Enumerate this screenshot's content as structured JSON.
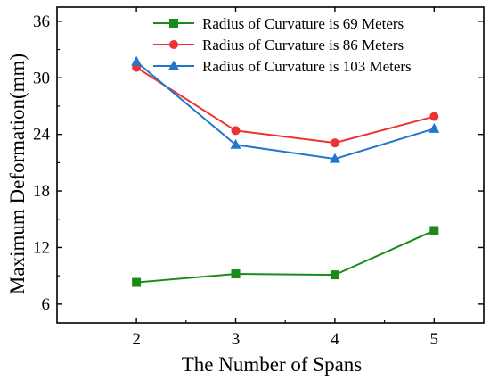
{
  "chart_data": {
    "type": "line",
    "title": "",
    "xlabel": "The Number of Spans",
    "ylabel": "Maximum Deformation(mm)",
    "x": [
      2,
      3,
      4,
      5
    ],
    "xticks": [
      "2",
      "3",
      "4",
      "5"
    ],
    "xlim": [
      1.2,
      5.5
    ],
    "yticks": [
      "6",
      "12",
      "18",
      "24",
      "30",
      "36"
    ],
    "ytick_values": [
      6,
      12,
      18,
      24,
      30,
      36
    ],
    "ylim": [
      4,
      37.5
    ],
    "grid": false,
    "legend_position": "top-right",
    "series": [
      {
        "name": "Radius of Curvature is 69 Meters",
        "color": "#1a8a1a",
        "marker": "square",
        "values": [
          8.3,
          9.2,
          9.1,
          13.8
        ]
      },
      {
        "name": "Radius of Curvature is 86 Meters",
        "color": "#ee3333",
        "marker": "circle",
        "values": [
          31.1,
          24.4,
          23.1,
          25.9
        ]
      },
      {
        "name": "Radius of Curvature is 103 Meters",
        "color": "#2277cc",
        "marker": "triangle",
        "values": [
          31.7,
          22.9,
          21.4,
          24.6
        ]
      }
    ]
  }
}
